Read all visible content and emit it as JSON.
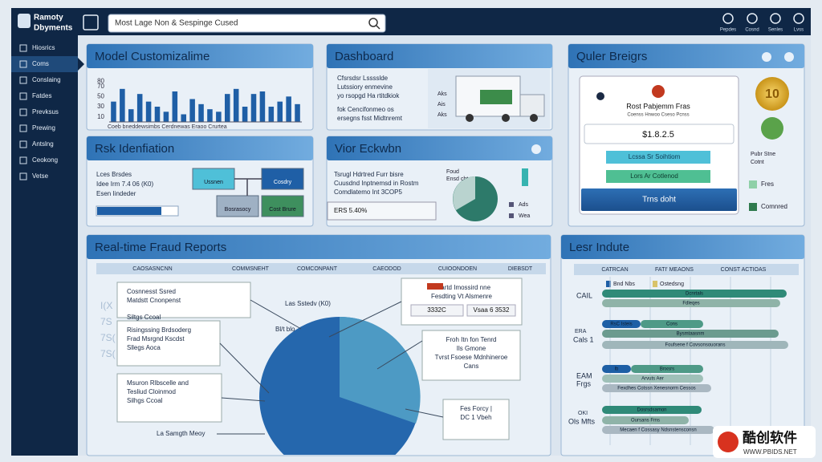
{
  "header": {
    "logo": [
      "Ramoty",
      "Dbyments"
    ],
    "search": "Most Lage Non & Sespinge Cused",
    "icons": [
      "Pepdes",
      "Cosnd",
      "Senles",
      "Lvss"
    ]
  },
  "sidebar": {
    "items": [
      "Hiosrics",
      "Coms",
      "Conslaing",
      "Fatdes",
      "Prevksus",
      "Prewing",
      "Antslng",
      "Ceokong",
      "Vetse"
    ],
    "active": 1
  },
  "model": {
    "title": "Model Customizalime",
    "caption": "Coeb bneddewsimbs  Cerdnewas  Eraoo Crurtea",
    "chart": {
      "ylim": [
        0,
        90
      ],
      "yticks": [
        80,
        70,
        50,
        30,
        10
      ],
      "values": [
        40,
        65,
        25,
        55,
        40,
        30,
        20,
        60,
        15,
        45,
        35,
        25,
        20,
        55,
        65,
        30,
        55,
        60,
        30,
        40,
        50,
        35
      ]
    }
  },
  "dashboard": {
    "title": "Dashboard",
    "lines": [
      "Cfsrsdsr Lsssslde",
      "Lutssiory enmevine",
      "yo rsopgd Ha rtitdkiok",
      "fok Cencifonmeo os",
      "ersegns fsst Midtnremt"
    ],
    "truck_labels": [
      "Aks",
      "Ais",
      "Aks"
    ]
  },
  "quler": {
    "title": "Quler Breigrs",
    "card_title": "Rost Pabjemm Fras",
    "card_sub": "Coenss Hnwoo Cseso Pcnss",
    "amount": "$1.8.2.5",
    "button1": "Lcssa Sr Soihtiom",
    "button2": "Lors Ar Cotlenod",
    "button3": "Trns doht",
    "coin": "10",
    "side": [
      "Pubr Stne",
      "Cotnt"
    ],
    "legend": [
      "Fres",
      "Comnred"
    ]
  },
  "risk": {
    "title": "Rsk Idenfiation",
    "lines": [
      "Lces Brsdes",
      "Idee Irm  7.4 06 (K0)",
      "Esen  Iindeder"
    ],
    "boxes": [
      "Ussnen",
      "Cosdry",
      "Bosrasocy",
      "Cost Brure"
    ]
  },
  "vior": {
    "title": "Vior Eckwbn",
    "lines": [
      "Tsrugl Hdrtred Furr bisre",
      "Cuusdnd Inptnemsd in Rostm",
      "Comdlatemo Int 3COP5"
    ],
    "stat": "ERS 5.40%",
    "pie_title": [
      "Foud",
      "Ensd chte"
    ],
    "legend": [
      "Ads",
      "Wea"
    ]
  },
  "fraud": {
    "title": "Real-time Fraud Reports",
    "columns": [
      "CAOSASNCNN",
      "COMMSNEHT",
      "COMCONPANT",
      "CAEODOD",
      "CUIOONDOEN",
      "DIEBSDT"
    ],
    "boxes": [
      [
        "Cosnnesst Ssred",
        "Matdstt Cnonpenst"
      ],
      [
        "Risingssing Brdsoderg",
        "Frad Msrgnd Kscdst",
        "Sllegs Aoca"
      ],
      [
        "Msuron Rlbscelle and",
        "Tesliud Cloinmod",
        "Silhgs Ccoal"
      ],
      [
        "Cuartd Imossird nne",
        "Fesdting Vt Alsmenre"
      ],
      [
        "Froh Itn fon Tenrd",
        "Ils Gmone",
        "Tvrst Fsoese Mdnhineroe",
        "Cans"
      ],
      [
        "Fes Forcy |",
        "DC 1 Vbeh"
      ]
    ],
    "buttons": [
      "3332C",
      "Vsaa 6 3532"
    ],
    "labels": [
      "Siltgs Ccoal",
      "Las Sstedv (K0)",
      "Bl/t blo",
      "La Samgth Meoy"
    ],
    "faint": [
      "I(X",
      "7S",
      "7S(",
      "7S("
    ]
  },
  "lesr": {
    "title": "Lesr Indute",
    "columns": [
      "CATRCAN",
      "FATI' MEAONS",
      "CONST ACTIOAS"
    ],
    "legend": [
      "Bnd Nbs",
      "Ostedsng"
    ],
    "rows": [
      "CAIL",
      "ERA",
      "Cals 1",
      "EAM",
      "Frgs",
      "OKI",
      "Ols Mfts"
    ],
    "bars": [
      "Dcnrtals",
      "Fdleqes",
      "RsC Isteis",
      "Cons",
      "Bysmtaasnm",
      "Foufsene f Covsonsouorans",
      "lb",
      "Bnxsrs",
      "Arvuts Aer",
      "Fexdhes Cotssn Xenesnorm Cessos",
      "Dosrsdsamon",
      "Oursans Fms",
      "Mecaen f Cossasy Ndsnstensconsn"
    ]
  },
  "watermark": {
    "name": "酷创软件",
    "url": "WWW.PBIDS.NET"
  }
}
